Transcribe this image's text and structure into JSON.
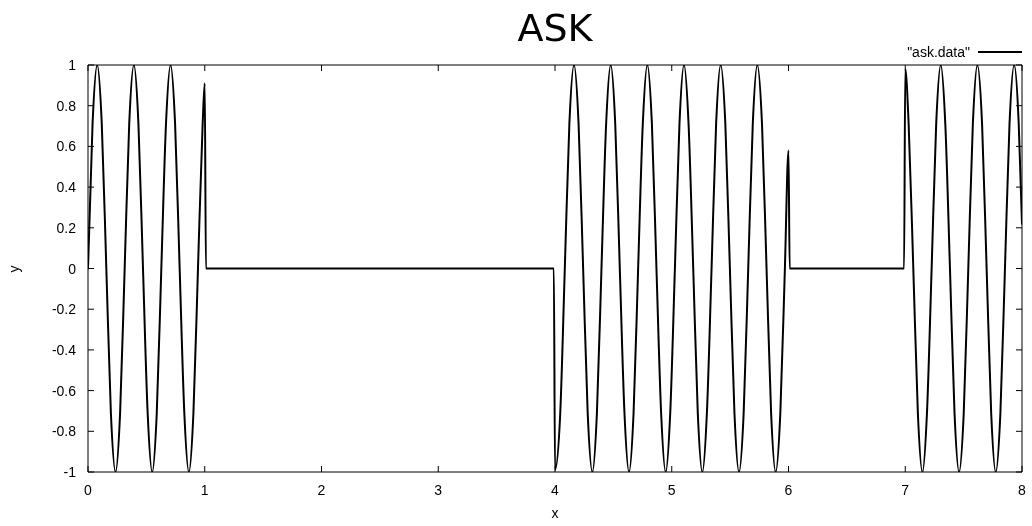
{
  "chart_data": {
    "type": "line",
    "title": "ASK",
    "xlabel": "x",
    "ylabel": "y",
    "x": [
      0,
      0.039,
      0.079,
      0.118,
      0.157,
      0.196,
      0.236,
      0.275,
      0.314,
      0.353,
      0.393,
      0.432,
      0.471,
      0.511,
      0.55,
      0.589,
      0.628,
      0.668,
      0.707,
      0.746,
      0.785,
      0.825,
      0.864,
      0.903,
      0.942,
      0.982,
      1,
      1.01,
      3.99,
      4,
      4.045,
      4.084,
      4.123,
      4.163,
      4.202,
      4.241,
      4.28,
      4.32,
      4.359,
      4.398,
      4.438,
      4.477,
      4.516,
      4.555,
      4.595,
      4.634,
      4.673,
      4.712,
      4.752,
      4.791,
      4.83,
      4.869,
      4.909,
      4.948,
      4.987,
      5.027,
      5.066,
      5.105,
      5.144,
      5.184,
      5.223,
      5.262,
      5.301,
      5.341,
      5.38,
      5.419,
      5.459,
      5.498,
      5.537,
      5.576,
      5.616,
      5.655,
      5.694,
      5.733,
      5.773,
      5.812,
      5.851,
      5.89,
      5.93,
      5.969,
      6,
      6.01,
      6.99,
      7,
      7.029,
      7.069,
      7.108,
      7.147,
      7.186,
      7.226,
      7.265,
      7.304,
      7.343,
      7.383,
      7.422,
      7.461,
      7.501,
      7.54,
      7.579,
      7.618,
      7.658,
      7.697,
      7.736,
      7.775,
      7.815,
      7.854,
      7.893,
      7.933,
      7.972,
      8
    ],
    "series": [
      {
        "name": "\"ask.data\"",
        "color": "#000000",
        "values": [
          0,
          0.71,
          1,
          0.71,
          0,
          -0.71,
          -1,
          -0.71,
          0,
          0.71,
          1,
          0.71,
          0,
          -0.71,
          -1,
          -0.71,
          0,
          0.71,
          1,
          0.71,
          0,
          -0.71,
          -1,
          -0.71,
          0,
          0.71,
          0.91,
          0,
          0,
          -0.99,
          -0.71,
          0,
          0.71,
          1,
          0.71,
          0,
          -0.71,
          -1,
          -0.71,
          0,
          0.71,
          1,
          0.71,
          0,
          -0.71,
          -1,
          -0.71,
          0,
          0.71,
          1,
          0.71,
          0,
          -0.71,
          -1,
          -0.71,
          0,
          0.71,
          1,
          0.71,
          0,
          -0.71,
          -1,
          -0.71,
          0,
          0.71,
          1,
          0.71,
          0,
          -0.71,
          -1,
          -0.71,
          0,
          0.71,
          1,
          0.71,
          0,
          -0.71,
          -1,
          -0.71,
          0,
          0.58,
          0,
          0,
          0.98,
          0.71,
          0,
          -0.71,
          -1,
          -0.71,
          0,
          0.71,
          1,
          0.71,
          0,
          -0.71,
          -1,
          -0.71,
          0,
          0.71,
          1,
          0.71,
          0,
          -0.71,
          -1,
          -0.71,
          0,
          0.71,
          1,
          0.71,
          0.22
        ]
      }
    ],
    "xlim": [
      0,
      8
    ],
    "ylim": [
      -1,
      1
    ],
    "xticks": [
      0,
      1,
      2,
      3,
      4,
      5,
      6,
      7,
      8
    ],
    "yticks": [
      -1,
      -0.8,
      -0.6,
      -0.4,
      -0.2,
      0,
      0.2,
      0.4,
      0.6,
      0.8,
      1
    ],
    "legend": "top right",
    "line_style": "solid"
  }
}
